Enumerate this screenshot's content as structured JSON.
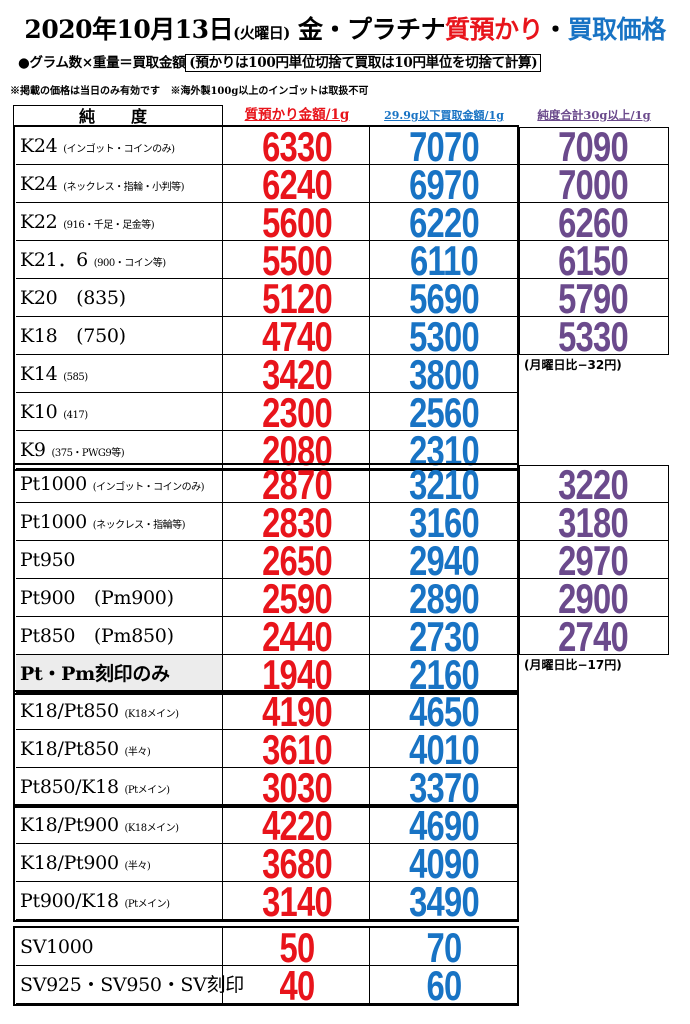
{
  "header": {
    "title_date": "2020年10月13日",
    "title_weekday": "(火曜日)",
    "title_metal": "金・プラチナ",
    "title_pawn": "質預かり",
    "title_dot": "・",
    "title_buy": "買取価格",
    "subtitle_formula": "●グラム数×重量＝買取金額",
    "subtitle_rule": "(預かりは100円単位切捨て買取は10円単位を切捨て計算)",
    "note_left": "※掲載の価格は当日のみ有効です",
    "note_right": "※海外製100g以上のインゴットは取扱不可"
  },
  "columns": {
    "purity": "純　度",
    "pawn": "質預かり金額/1g",
    "buy_small": "29.9g以下買取金額/1g",
    "buy_large": "純度合計30g以上/1g"
  },
  "gold": {
    "rows": [
      {
        "main": "K24",
        "sub": "(インゴット・コインのみ)",
        "pawn": "6330",
        "buy": "7070",
        "large": "7090"
      },
      {
        "main": "K24",
        "sub": "(ネックレス・指輪・小判等)",
        "pawn": "6240",
        "buy": "6970",
        "large": "7000"
      },
      {
        "main": "K22",
        "sub": "(916・千足・足金等)",
        "pawn": "5600",
        "buy": "6220",
        "large": "6260"
      },
      {
        "main": "K21．6",
        "sub": "(900・コイン等)",
        "pawn": "5500",
        "buy": "6110",
        "large": "6150"
      },
      {
        "main": "K20　(835)",
        "sub": "",
        "pawn": "5120",
        "buy": "5690",
        "large": "5790"
      },
      {
        "main": "K18　(750)",
        "sub": "",
        "pawn": "4740",
        "buy": "5300",
        "large": "5330"
      },
      {
        "main": "K14",
        "sub": "(585)",
        "pawn": "3420",
        "buy": "3800",
        "large": ""
      },
      {
        "main": "K10",
        "sub": "(417)",
        "pawn": "2300",
        "buy": "2560",
        "large": ""
      },
      {
        "main": "K9",
        "sub": "(375・PWG9等)",
        "pawn": "2080",
        "buy": "2310",
        "large": ""
      }
    ],
    "note": "(月曜日比−32円)"
  },
  "platinum": {
    "rows": [
      {
        "main": "Pt1000",
        "sub": "(インゴット・コインのみ)",
        "pawn": "2870",
        "buy": "3210",
        "large": "3220"
      },
      {
        "main": "Pt1000",
        "sub": "(ネックレス・指輪等)",
        "pawn": "2830",
        "buy": "3160",
        "large": "3180"
      },
      {
        "main": "Pt950",
        "sub": "",
        "pawn": "2650",
        "buy": "2940",
        "large": "2970"
      },
      {
        "main": "Pt900　(Pm900)",
        "sub": "",
        "pawn": "2590",
        "buy": "2890",
        "large": "2900"
      },
      {
        "main": "Pt850　(Pm850)",
        "sub": "",
        "pawn": "2440",
        "buy": "2730",
        "large": "2740"
      },
      {
        "main": "Pt・Pm刻印のみ",
        "sub": "",
        "pawn": "1940",
        "buy": "2160",
        "large": ""
      }
    ],
    "note": "(月曜日比−17円)"
  },
  "combo850": {
    "rows": [
      {
        "main": "K18/Pt850",
        "sub": "(K18メイン)",
        "pawn": "4190",
        "buy": "4650"
      },
      {
        "main": "K18/Pt850",
        "sub": "(半々)",
        "pawn": "3610",
        "buy": "4010"
      },
      {
        "main": "Pt850/K18",
        "sub": "(Ptメイン)",
        "pawn": "3030",
        "buy": "3370"
      }
    ]
  },
  "combo900": {
    "rows": [
      {
        "main": "K18/Pt900",
        "sub": "(K18メイン)",
        "pawn": "4220",
        "buy": "4690"
      },
      {
        "main": "K18/Pt900",
        "sub": "(半々)",
        "pawn": "3680",
        "buy": "4090"
      },
      {
        "main": "Pt900/K18",
        "sub": "(Ptメイン)",
        "pawn": "3140",
        "buy": "3490"
      }
    ]
  },
  "silver": {
    "rows": [
      {
        "main": "SV1000",
        "sub": "",
        "pawn": "50",
        "buy": "70"
      },
      {
        "main": "SV925・SV950・SV刻印",
        "sub": "",
        "pawn": "40",
        "buy": "60"
      }
    ]
  }
}
